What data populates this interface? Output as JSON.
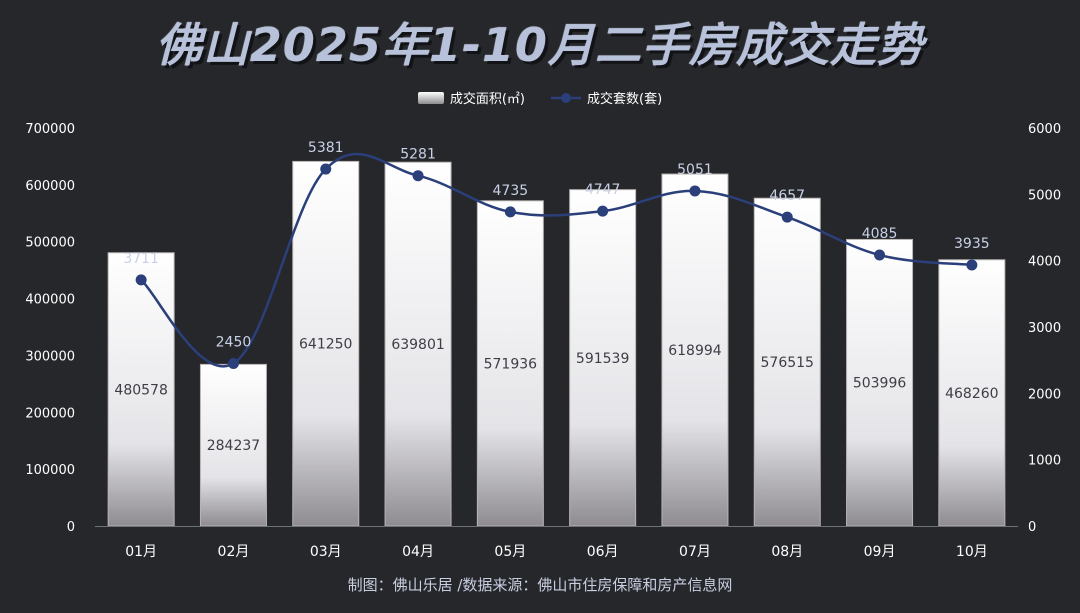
{
  "title": "佛山2025年1-10月二手房成交走势",
  "legend": {
    "area_label": "成交面积(㎡)",
    "count_label": "成交套数(套)"
  },
  "footer": "制图：佛山乐居 /数据来源：佛山市住房保障和房产信息网",
  "colors": {
    "background": "#25272b",
    "line": "#2b3f7a",
    "bar_top": "#ffffff",
    "bar_bottom": "#8e8c90"
  },
  "chart_data": {
    "type": "bar",
    "categories": [
      "01月",
      "02月",
      "03月",
      "04月",
      "05月",
      "06月",
      "07月",
      "08月",
      "09月",
      "10月"
    ],
    "series": [
      {
        "name": "成交面积(㎡)",
        "type": "bar",
        "axis": "left",
        "values": [
          480578,
          284237,
          641250,
          639801,
          571936,
          591539,
          618994,
          576515,
          503996,
          468260
        ]
      },
      {
        "name": "成交套数(套)",
        "type": "line",
        "axis": "right",
        "values": [
          3711,
          2450,
          5381,
          5281,
          4735,
          4747,
          5051,
          4657,
          4085,
          3935
        ]
      }
    ],
    "y_left": {
      "min": 0,
      "max": 700000,
      "ticks": [
        0,
        100000,
        200000,
        300000,
        400000,
        500000,
        600000,
        700000
      ]
    },
    "y_right": {
      "min": 0,
      "max": 6000,
      "ticks": [
        0,
        1000,
        2000,
        3000,
        4000,
        5000,
        6000
      ]
    },
    "legend_position": "top-center",
    "grid": false
  }
}
